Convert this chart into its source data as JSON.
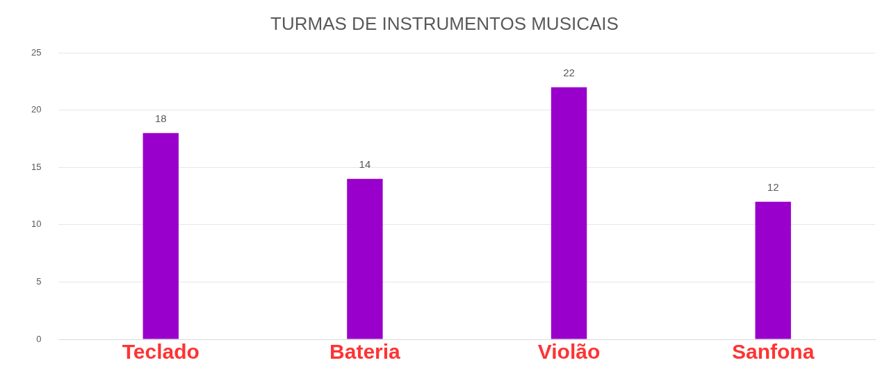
{
  "chart_data": {
    "type": "bar",
    "title": "TURMAS DE INSTRUMENTOS MUSICAIS",
    "categories": [
      "Teclado",
      "Bateria",
      "Violão",
      "Sanfona"
    ],
    "values": [
      18,
      14,
      22,
      12
    ],
    "color": "#9900cc",
    "ylim": [
      0,
      25
    ],
    "yticks": [
      0,
      5,
      10,
      15,
      20,
      25
    ],
    "grid": "y",
    "data_labels": true,
    "legend": false
  }
}
